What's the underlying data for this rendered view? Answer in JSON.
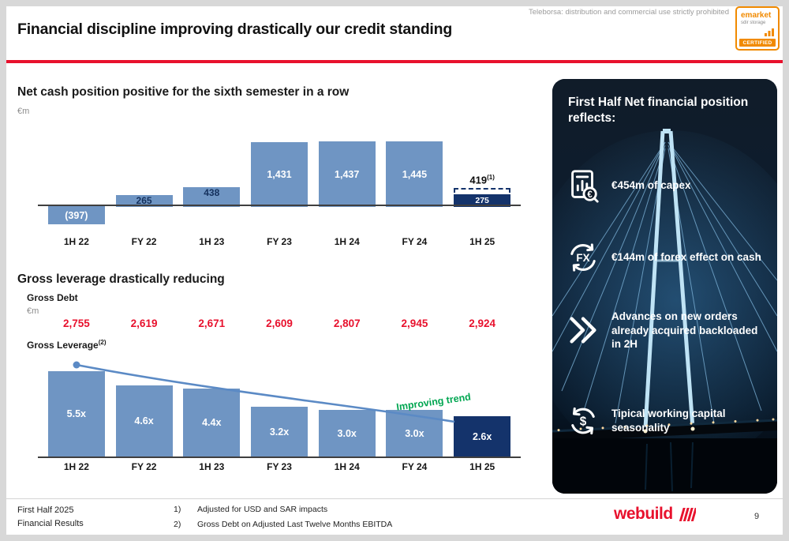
{
  "header": {
    "title": "Financial discipline improving drastically our credit standing",
    "disclaimer": "Teleborsa: distribution and commercial use strictly prohibited",
    "badge": {
      "brand": "emarket",
      "sub": "sdir storage",
      "certified": "CERTIFIED"
    }
  },
  "section1": {
    "title": "Net cash position positive for the sixth semester in a row",
    "unit": "€m"
  },
  "section2": {
    "title": "Gross leverage drastically reducing",
    "gross_debt_label": "Gross Debt",
    "unit": "€m",
    "gross_leverage_label": "Gross Leverage",
    "gross_leverage_sup": "(2)",
    "trend_label": "Improving trend"
  },
  "chart_data": [
    {
      "type": "bar",
      "title": "Net cash position (€m)",
      "categories": [
        "1H 22",
        "FY 22",
        "1H 23",
        "FY 23",
        "1H 24",
        "FY 24",
        "1H 25"
      ],
      "values": [
        -397,
        265,
        438,
        1431,
        1437,
        1445,
        275
      ],
      "labels": [
        "(397)",
        "265",
        "438",
        "1,431",
        "1,437",
        "1,445",
        "275"
      ],
      "adjusted_value": 419,
      "adjusted_label": "419",
      "adjusted_sup": "(1)",
      "ylabel": "€m",
      "ylim": [
        -450,
        1550
      ],
      "grid": false,
      "legend": false
    },
    {
      "type": "bar",
      "title": "Gross Leverage (x)",
      "categories": [
        "1H 22",
        "FY 22",
        "1H 23",
        "FY 23",
        "1H 24",
        "FY 24",
        "1H 25"
      ],
      "values": [
        5.5,
        4.6,
        4.4,
        3.2,
        3.0,
        3.0,
        2.6
      ],
      "labels": [
        "5.5x",
        "4.6x",
        "4.4x",
        "3.2x",
        "3.0x",
        "3.0x",
        "2.6x"
      ],
      "gross_debt": [
        "2,755",
        "2,619",
        "2,671",
        "2,609",
        "2,807",
        "2,945",
        "2,924"
      ],
      "trend_annotation": "Improving trend",
      "ylim": [
        0,
        6
      ],
      "grid": false,
      "legend": false
    }
  ],
  "panel": {
    "title": "First Half Net financial position reflects:",
    "items": [
      {
        "icon": "capex-document-icon",
        "text": "€454m of capex"
      },
      {
        "icon": "fx-exchange-icon",
        "text": "€144m of forex effect on cash"
      },
      {
        "icon": "fast-forward-icon",
        "text": "Advances on new orders already acquired backloaded in 2H"
      },
      {
        "icon": "working-capital-cycle-icon",
        "text": "Tipical working capital seasonality"
      }
    ]
  },
  "footer": {
    "left_line1": "First Half 2025",
    "left_line2": "Financial Results",
    "notes": [
      {
        "num": "1)",
        "text": "Adjusted for USD and SAR impacts"
      },
      {
        "num": "2)",
        "text": "Gross Debt on Adjusted Last Twelve Months EBITDA"
      }
    ],
    "logo": "webuild",
    "page": "9"
  },
  "colors": {
    "accent_red": "#e8112d",
    "bar_blue": "#6f95c3",
    "bar_navy": "#14336b",
    "value_red": "#e8112d",
    "trend_green": "#00a651",
    "badge_orange": "#f18a00"
  }
}
